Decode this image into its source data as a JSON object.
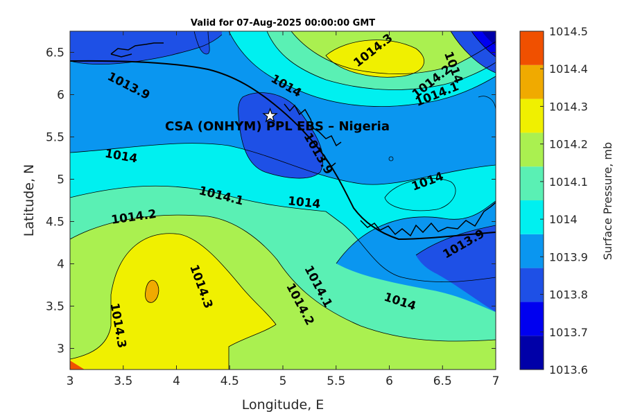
{
  "chart_data": {
    "type": "contour",
    "title": "Valid for 07-Aug-2025 00:00:00 GMT",
    "xlabel": "Longitude, E",
    "ylabel": "Latitude, N",
    "xlim": [
      3,
      7
    ],
    "ylim": [
      2.75,
      6.75
    ],
    "xticks": [
      "3",
      "3.5",
      "4",
      "4.5",
      "5",
      "5.5",
      "6",
      "6.5",
      "7"
    ],
    "yticks": [
      "3",
      "3.5",
      "4",
      "4.5",
      "5",
      "5.5",
      "6",
      "6.5"
    ],
    "colorbar": {
      "label": "Surface Pressure, mb",
      "levels": [
        "1013.6",
        "1013.7",
        "1013.8",
        "1013.9",
        "1014",
        "1014.1",
        "1014.2",
        "1014.3",
        "1014.4",
        "1014.5"
      ],
      "colors": [
        "#0000a8",
        "#0000f0",
        "#1e50e6",
        "#0a96f0",
        "#00f0f0",
        "#5af0b4",
        "#aaf050",
        "#f0f000",
        "#f0aa00",
        "#f05000"
      ]
    },
    "site_marker": {
      "lon": 4.88,
      "lat": 5.75,
      "symbol": "star"
    },
    "annotation": "CSA (ONHYM) PPL EBS – Nigeria",
    "contour_labels": [
      {
        "text": "1014.3",
        "lon": 5.85,
        "lat": 6.52,
        "rot": -38
      },
      {
        "text": "1014.2",
        "lon": 6.4,
        "lat": 6.15,
        "rot": -38
      },
      {
        "text": "1014.1",
        "lon": 6.45,
        "lat": 6.0,
        "rot": -22
      },
      {
        "text": "1014",
        "lon": 6.6,
        "lat": 6.32,
        "rot": 70
      },
      {
        "text": "1014",
        "lon": 5.03,
        "lat": 6.1,
        "rot": 30
      },
      {
        "text": "1013.9",
        "lon": 3.55,
        "lat": 6.1,
        "rot": 27
      },
      {
        "text": "1013.9",
        "lon": 5.33,
        "lat": 5.3,
        "rot": 60
      },
      {
        "text": "1014",
        "lon": 3.48,
        "lat": 5.27,
        "rot": 10
      },
      {
        "text": "1014.1",
        "lon": 4.42,
        "lat": 4.8,
        "rot": 14
      },
      {
        "text": "1014.2",
        "lon": 3.6,
        "lat": 4.55,
        "rot": -8
      },
      {
        "text": "1014",
        "lon": 5.2,
        "lat": 4.72,
        "rot": 6
      },
      {
        "text": "1014",
        "lon": 6.36,
        "lat": 4.97,
        "rot": -20
      },
      {
        "text": "1013.9",
        "lon": 6.7,
        "lat": 4.23,
        "rot": -30
      },
      {
        "text": "1014.3",
        "lon": 4.23,
        "lat": 3.73,
        "rot": 70
      },
      {
        "text": "1014.3",
        "lon": 3.45,
        "lat": 3.27,
        "rot": 80
      },
      {
        "text": "1014.1",
        "lon": 5.33,
        "lat": 3.73,
        "rot": 62
      },
      {
        "text": "1014.2",
        "lon": 5.16,
        "lat": 3.52,
        "rot": 62
      },
      {
        "text": "1014",
        "lon": 6.1,
        "lat": 3.55,
        "rot": 18
      }
    ]
  }
}
